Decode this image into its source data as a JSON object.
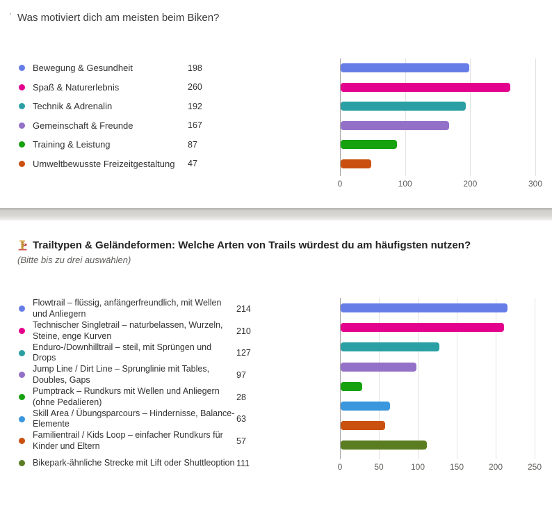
{
  "question1": {
    "title": "Was motiviert dich am meisten beim Biken?"
  },
  "question2": {
    "emoji_icon": "lift-tower-emoji",
    "title": "Trailtypen & Geländeformen: Welche Arten von Trails würdest du am häufigsten nutzen?",
    "subtitle": "(Bitte bis zu drei auswählen)"
  },
  "theme_colors": {
    "card_background": "#ffffff",
    "divider_band": "#d7d6d3",
    "grid_line": "#e3e2e0",
    "axis_zero_line": "#a6a4a2",
    "axis_label": "#605e5c",
    "legend_text": "#323130",
    "title_text": "#3b3a39",
    "bold_title_text": "#242424"
  },
  "chart_data": [
    {
      "type": "bar",
      "orientation": "horizontal",
      "title": "Was motiviert dich am meisten beim Biken?",
      "categories": [
        "Bewegung & Gesundheit",
        "Spaß & Naturerlebnis",
        "Technik & Adrenalin",
        "Gemeinschaft & Freunde",
        "Training & Leistung",
        "Umweltbewusste Freizeitgestaltung"
      ],
      "values": [
        198,
        260,
        192,
        167,
        87,
        47
      ],
      "colors": [
        "#667de8",
        "#e3008c",
        "#2aa0a4",
        "#9471c8",
        "#16a10e",
        "#ca5010"
      ],
      "xlim": [
        0,
        300
      ],
      "xticks": [
        0,
        100,
        200,
        300
      ],
      "grid": true,
      "legend_position": "left",
      "value_labels_shown": true
    },
    {
      "type": "bar",
      "orientation": "horizontal",
      "title": "Trailtypen & Geländeformen: Welche Arten von Trails würdest du am häufigsten nutzen?",
      "subtitle": "(Bitte bis zu drei auswählen)",
      "categories": [
        "Flowtrail – flüssig, anfängerfreundlich, mit Wellen und Anliegern",
        "Technischer Singletrail – naturbelassen, Wurzeln, Steine, enge Kurven",
        "Enduro-/Downhilltrail – steil, mit Sprüngen und Drops",
        "Jump Line / Dirt Line – Sprunglinie mit Tables, Doubles, Gaps",
        "Pumptrack – Rundkurs mit Wellen und Anliegern (ohne Pedalieren)",
        "Skill Area / Übungsparcours – Hindernisse, Balance-Elemente",
        "Familientrail / Kids Loop – einfacher Rundkurs für Kinder und Eltern",
        "Bikepark-ähnliche Strecke mit Lift oder Shuttleoption"
      ],
      "values": [
        214,
        210,
        127,
        97,
        28,
        63,
        57,
        111
      ],
      "colors": [
        "#667de8",
        "#e3008c",
        "#2aa0a4",
        "#9471c8",
        "#16a10e",
        "#3a96dd",
        "#ca5010",
        "#5b7d22"
      ],
      "xlim": [
        0,
        250
      ],
      "xticks": [
        0,
        50,
        100,
        150,
        200,
        250
      ],
      "grid": true,
      "legend_position": "left",
      "value_labels_shown": true
    }
  ]
}
